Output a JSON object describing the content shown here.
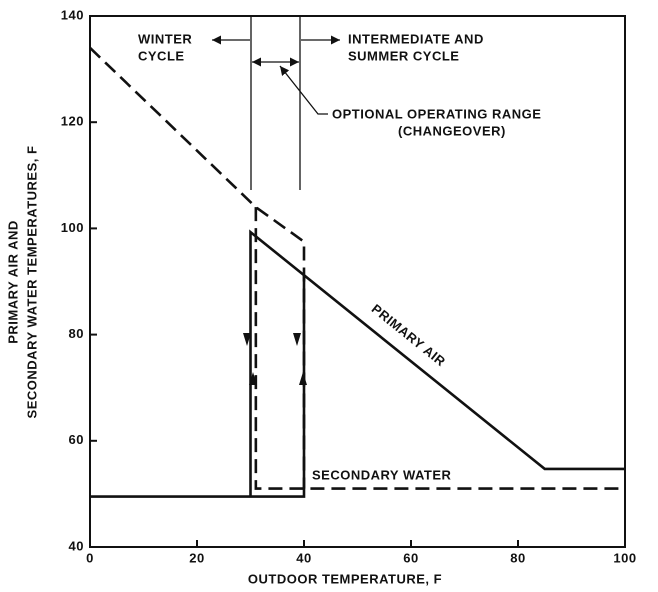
{
  "chart_data": {
    "type": "line",
    "xlabel": "OUTDOOR TEMPERATURE, F",
    "ylabel": [
      "PRIMARY AIR AND",
      "SECONDARY WATER TEMPERATURES, F"
    ],
    "xlim": [
      0,
      100
    ],
    "xticks": [
      0,
      20,
      40,
      60,
      80,
      100
    ],
    "ylim": [
      40,
      140
    ],
    "yticks": [
      40,
      60,
      80,
      100,
      120,
      140
    ],
    "series": [
      {
        "name": "PRIMARY AIR",
        "color": "#111111",
        "style": "solid",
        "x": [
          0,
          40,
          40,
          null,
          30,
          30,
          85,
          100
        ],
        "values": [
          49.5,
          49.5,
          91.2,
          null,
          49.5,
          99.3,
          54.7,
          54.7
        ]
      },
      {
        "name": "SECONDARY WATER",
        "color": "#111111",
        "style": "dashed",
        "x": [
          0,
          31,
          40,
          40,
          null,
          31,
          31,
          100
        ],
        "values": [
          134,
          104,
          97.5,
          51,
          null,
          104,
          51,
          51
        ]
      }
    ],
    "annotations": [
      [
        "WINTER",
        "CYCLE"
      ],
      [
        "INTERMEDIATE AND",
        "SUMMER CYCLE"
      ],
      [
        "OPTIONAL OPERATING RANGE",
        "(CHANGEOVER)"
      ]
    ]
  }
}
